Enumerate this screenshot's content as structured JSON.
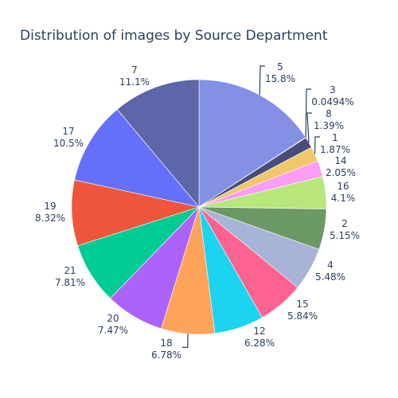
{
  "chart_data": {
    "type": "pie",
    "title": "Distribution of images by Source Department",
    "slices": [
      {
        "label": "5",
        "value": 15.8,
        "percent_text": "15.8%",
        "color": "#8390e4"
      },
      {
        "label": "3",
        "value": 0.0494,
        "percent_text": "0.0494%",
        "color": "#2e3270"
      },
      {
        "label": "8",
        "value": 1.39,
        "percent_text": "1.39%",
        "color": "#494d7c"
      },
      {
        "label": "1",
        "value": 1.87,
        "percent_text": "1.87%",
        "color": "#f0c76b"
      },
      {
        "label": "14",
        "value": 2.05,
        "percent_text": "2.05%",
        "color": "#fb9cf5"
      },
      {
        "label": "16",
        "value": 4.1,
        "percent_text": "4.1%",
        "color": "#b7e77a"
      },
      {
        "label": "2",
        "value": 5.15,
        "percent_text": "5.15%",
        "color": "#6b9864"
      },
      {
        "label": "4",
        "value": 5.48,
        "percent_text": "5.48%",
        "color": "#a8b3d8"
      },
      {
        "label": "15",
        "value": 5.84,
        "percent_text": "5.84%",
        "color": "#fd6390"
      },
      {
        "label": "12",
        "value": 6.28,
        "percent_text": "6.28%",
        "color": "#1cd3f0"
      },
      {
        "label": "18",
        "value": 6.78,
        "percent_text": "6.78%",
        "color": "#fea35a"
      },
      {
        "label": "20",
        "value": 7.47,
        "percent_text": "7.47%",
        "color": "#ac63f9"
      },
      {
        "label": "21",
        "value": 7.81,
        "percent_text": "7.81%",
        "color": "#00cb94"
      },
      {
        "label": "19",
        "value": 8.32,
        "percent_text": "8.32%",
        "color": "#ef553a"
      },
      {
        "label": "17",
        "value": 10.5,
        "percent_text": "10.5%",
        "color": "#6570fa"
      },
      {
        "label": "7",
        "value": 11.1,
        "percent_text": "11.1%",
        "color": "#5c66a8"
      }
    ],
    "direction": "clockwise",
    "start": "12 o'clock",
    "legend": "none"
  }
}
